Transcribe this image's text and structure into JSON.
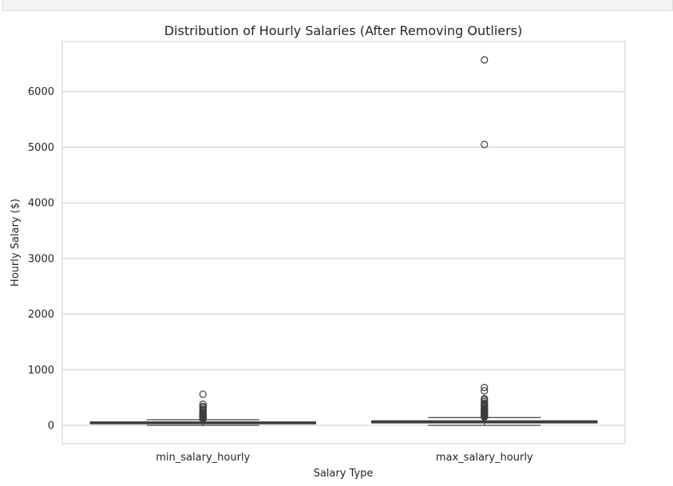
{
  "chart_data": {
    "type": "box",
    "title": "Distribution of Hourly Salaries (After Removing Outliers)",
    "xlabel": "Salary Type",
    "ylabel": "Hourly Salary ($)",
    "ylim": [
      -330,
      6900
    ],
    "yticks": [
      0,
      1000,
      2000,
      3000,
      4000,
      5000,
      6000
    ],
    "grid": true,
    "colors": {
      "grid": "#cccccc",
      "box_edge": "#3d3d3d",
      "spine": "#cccccc",
      "text": "#262626"
    },
    "categories": [
      "min_salary_hourly",
      "max_salary_hourly"
    ],
    "boxes": [
      {
        "name": "min_salary_hourly",
        "q1": 30,
        "median": 40,
        "q3": 60,
        "whisker_low": 0,
        "whisker_high": 100,
        "outliers": [
          110,
          120,
          130,
          140,
          150,
          160,
          170,
          180,
          190,
          200,
          210,
          220,
          230,
          250,
          270,
          290,
          320,
          340,
          380,
          560
        ]
      },
      {
        "name": "max_salary_hourly",
        "q1": 45,
        "median": 60,
        "q3": 80,
        "whisker_low": 0,
        "whisker_high": 140,
        "outliers": [
          150,
          160,
          170,
          180,
          190,
          200,
          210,
          220,
          230,
          240,
          250,
          260,
          270,
          280,
          290,
          300,
          320,
          340,
          360,
          380,
          400,
          430,
          460,
          480,
          620,
          680,
          5050,
          6570
        ]
      }
    ]
  }
}
